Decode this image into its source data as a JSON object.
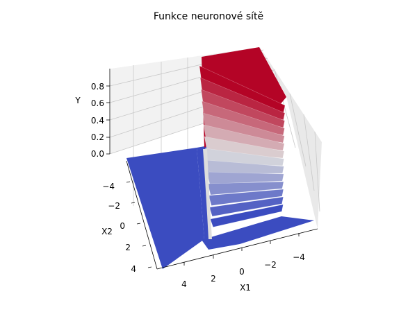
{
  "chart_data": {
    "type": "surface3d",
    "title": "Funkce neuronové sítě",
    "xlabel": "X1",
    "ylabel": "X2",
    "zlabel": "Y",
    "x_ticks": [
      "4",
      "2",
      "0",
      "−2",
      "−4"
    ],
    "y_ticks": [
      "−4",
      "−2",
      "0",
      "2",
      "4"
    ],
    "z_ticks": [
      "0.0",
      "0.2",
      "0.4",
      "0.6",
      "0.8"
    ],
    "xlim": [
      -5,
      5
    ],
    "ylim": [
      -5,
      5
    ],
    "zlim": [
      0,
      0.9
    ],
    "colormap": "coolwarm",
    "colors": {
      "low": "#3b4cc0",
      "mid": "#dddddd",
      "high": "#b40426"
    },
    "surface_levels": {
      "plateau_low": 0.0,
      "plateau_high": 0.9,
      "step_location_x1": 0.0
    }
  }
}
